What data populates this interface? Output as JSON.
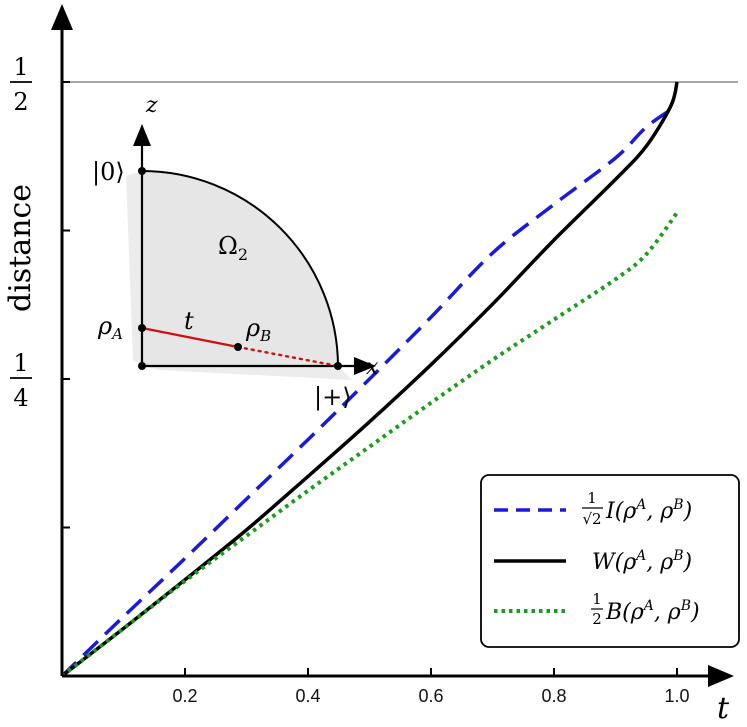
{
  "chart_data": {
    "type": "line",
    "xlabel": "t",
    "ylabel": "distance",
    "xlim": [
      0,
      1.0
    ],
    "ylim": [
      0,
      0.5
    ],
    "x_ticks": [
      0.2,
      0.4,
      0.6,
      0.8,
      1.0
    ],
    "x_tick_labels": [
      "0.2",
      "0.4",
      "0.6",
      "0.8",
      "1.0"
    ],
    "y_ticks": [
      0.125,
      0.25,
      0.375,
      0.5
    ],
    "y_tick_labels": [
      {
        "value": 0.25,
        "num": "1",
        "den": "4"
      },
      {
        "value": 0.5,
        "num": "1",
        "den": "2"
      }
    ],
    "reference_line": {
      "y": 0.5,
      "color": "#888888"
    },
    "grid": false,
    "legend_position": "bottom-right",
    "series": [
      {
        "name": "1/√2 I(ρ^A, ρ^B)",
        "legend": {
          "coef_num": "1",
          "coef_den": "√2",
          "body": "I(ρ",
          "sup1": "A",
          "mid": ", ρ",
          "sup2": "B",
          "end": ")"
        },
        "color": "#1a1adb",
        "style": "dashed",
        "x": [
          0,
          0.1,
          0.2,
          0.3,
          0.4,
          0.5,
          0.6,
          0.7,
          0.8,
          0.9,
          0.95,
          1.0
        ],
        "y": [
          0,
          0.05,
          0.099,
          0.149,
          0.199,
          0.25,
          0.302,
          0.356,
          0.397,
          0.436,
          0.462,
          0.48
        ]
      },
      {
        "name": "W(ρ^A, ρ^B)",
        "legend": {
          "coef_num": "",
          "coef_den": "",
          "body": "W(ρ",
          "sup1": "A",
          "mid": ", ρ",
          "sup2": "B",
          "end": ")"
        },
        "color": "#000000",
        "style": "solid",
        "x": [
          0,
          0.1,
          0.2,
          0.3,
          0.4,
          0.5,
          0.6,
          0.7,
          0.8,
          0.9,
          0.95,
          0.99,
          1.0
        ],
        "y": [
          0,
          0.04,
          0.081,
          0.123,
          0.168,
          0.214,
          0.262,
          0.313,
          0.367,
          0.418,
          0.446,
          0.48,
          0.5
        ]
      },
      {
        "name": "1/2 B(ρ^A, ρ^B)",
        "legend": {
          "coef_num": "1",
          "coef_den": "2",
          "body": "B(ρ",
          "sup1": "A",
          "mid": ", ρ",
          "sup2": "B",
          "end": ")"
        },
        "color": "#1a9e1a",
        "style": "dotted",
        "x": [
          0,
          0.1,
          0.2,
          0.3,
          0.4,
          0.5,
          0.6,
          0.7,
          0.8,
          0.9,
          0.95,
          1.0
        ],
        "y": [
          0,
          0.04,
          0.08,
          0.118,
          0.156,
          0.193,
          0.23,
          0.266,
          0.3,
          0.334,
          0.355,
          0.39
        ]
      }
    ],
    "inset": {
      "axis_x": "x",
      "axis_z": "z",
      "region": "Ω",
      "region_sub": "2",
      "state_top": "|0⟩",
      "state_right": "|+⟩",
      "rho_a": "ρ",
      "rho_a_sub": "A",
      "rho_b": "ρ",
      "rho_b_sub": "B",
      "segment": "t",
      "fill_color": "#e6e6e6",
      "segment_color": "#cc1111"
    }
  }
}
